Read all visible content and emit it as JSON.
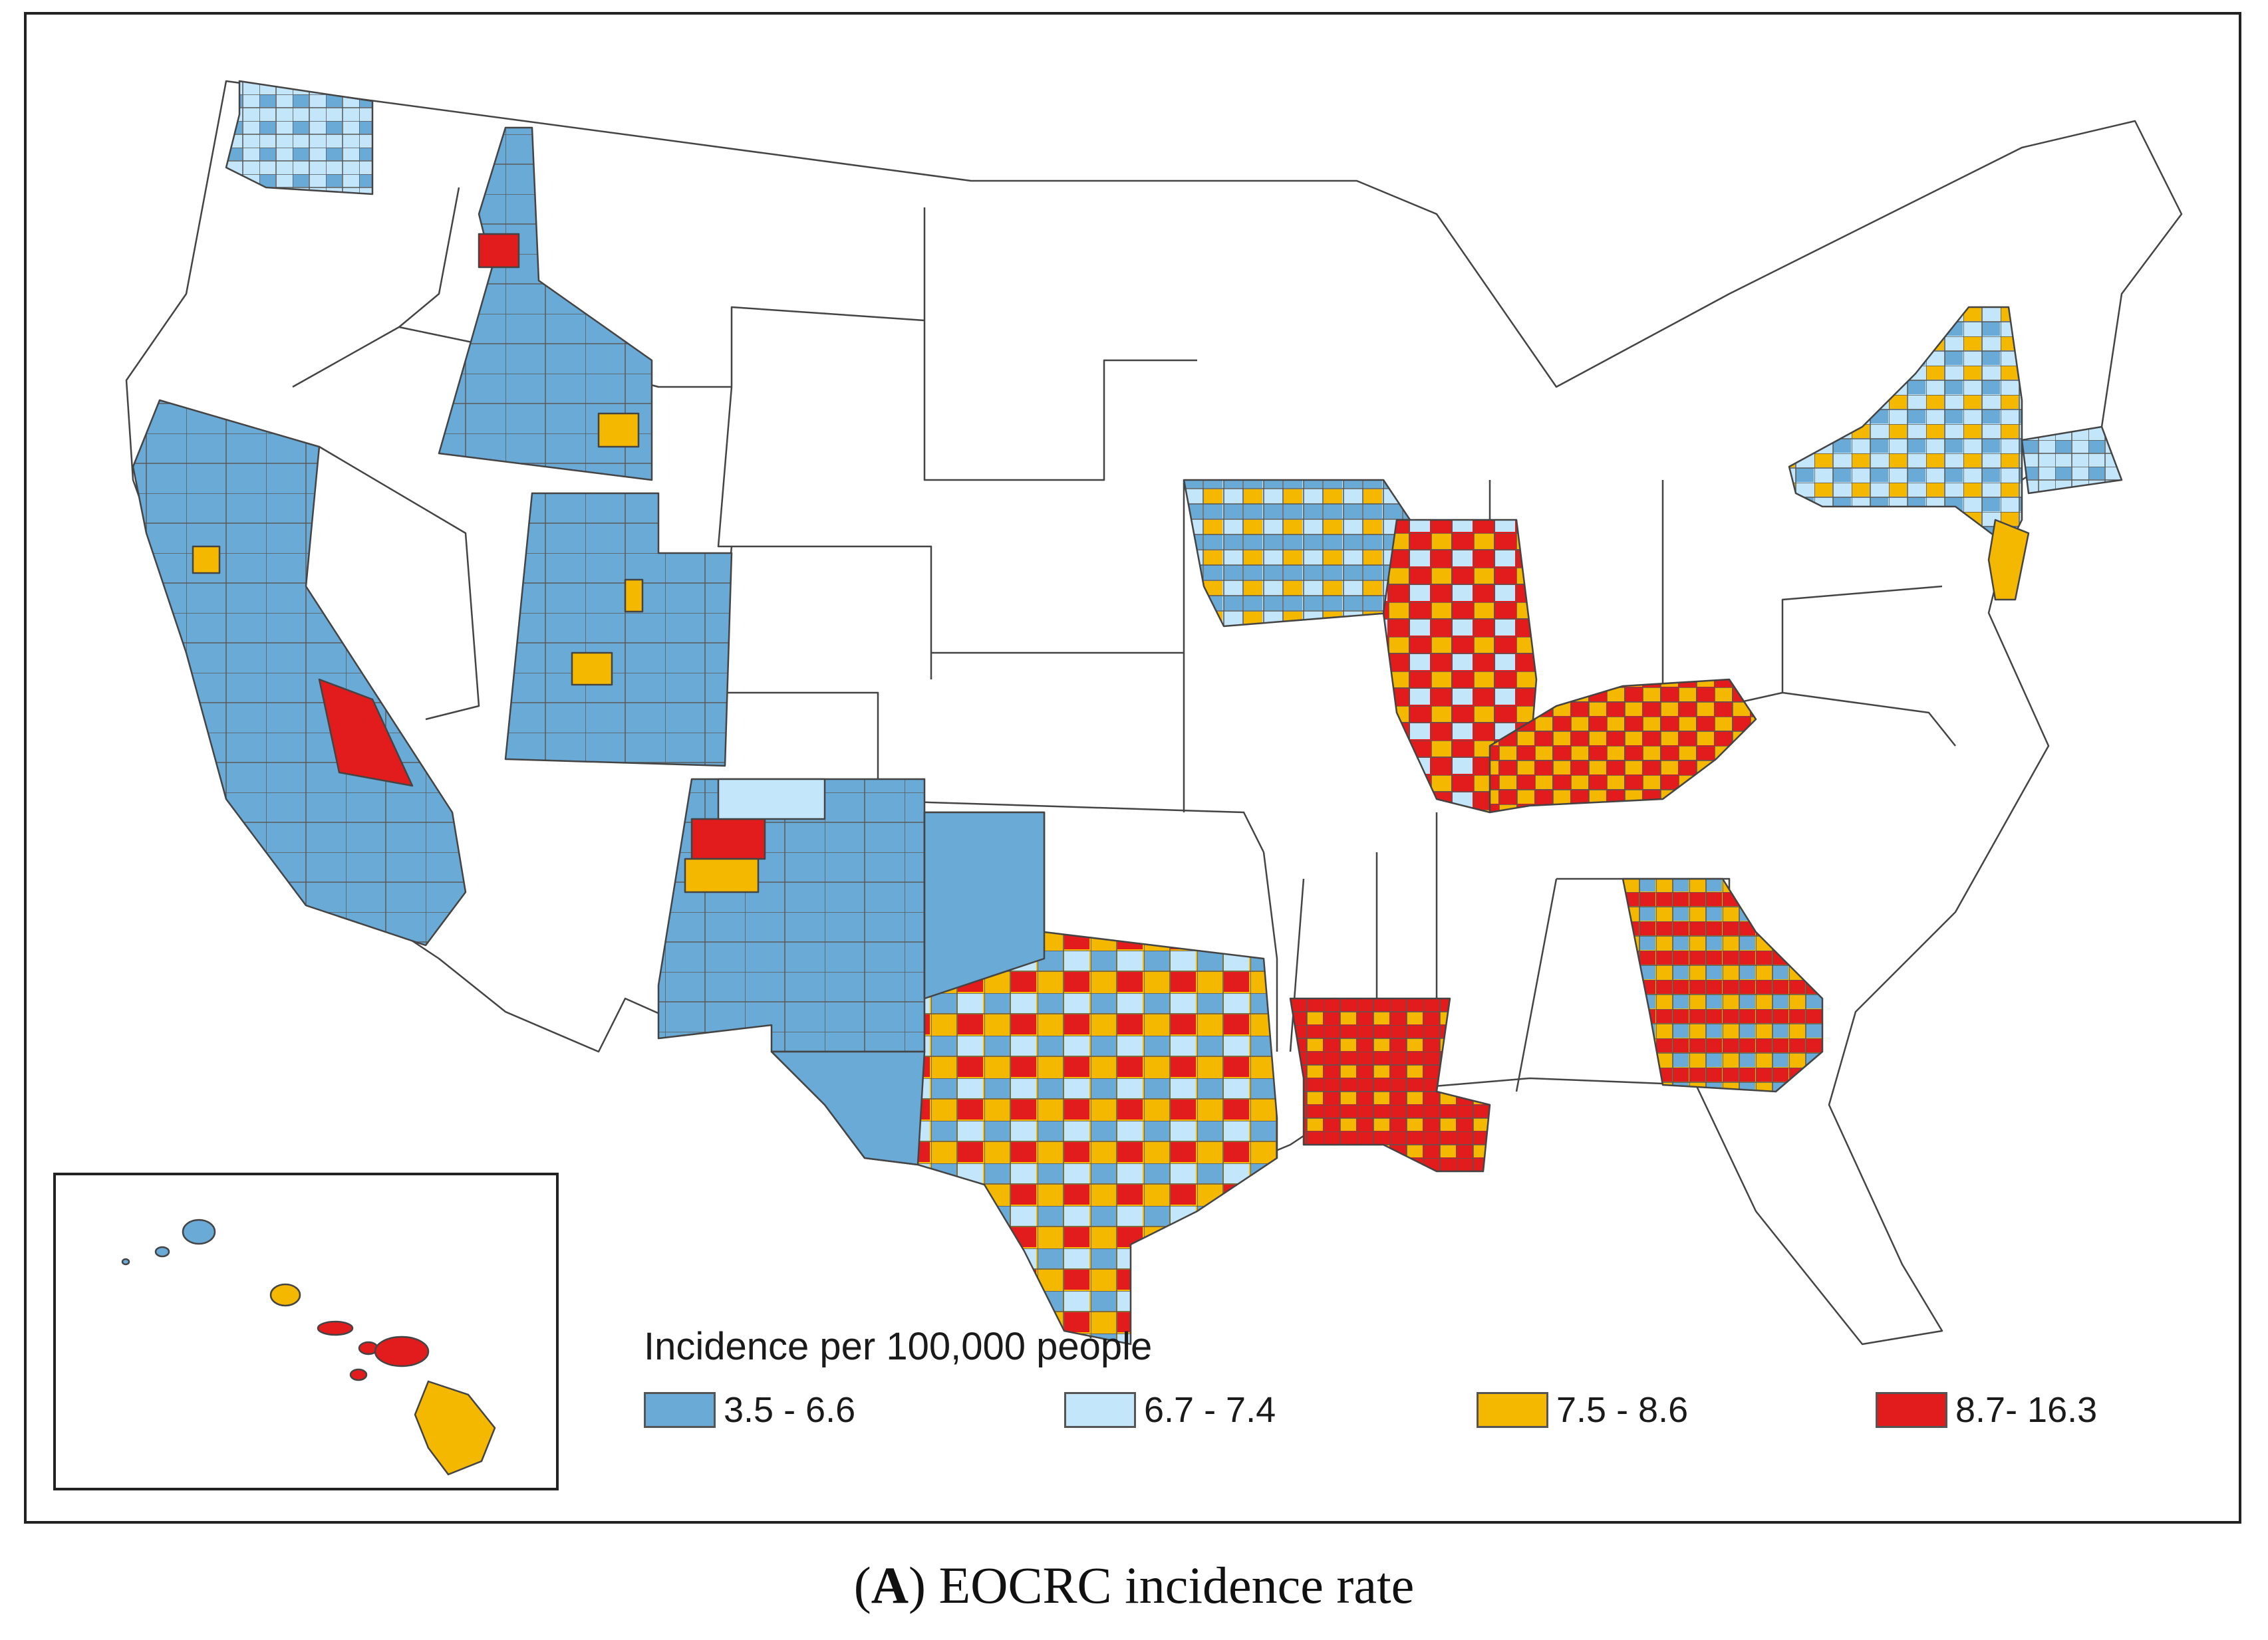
{
  "legend": {
    "title": "Incidence per 100,000 people",
    "items": [
      {
        "label": "3.5 - 6.6",
        "color": "#6aaad6"
      },
      {
        "label": "6.7 - 7.4",
        "color": "#c3e6fb"
      },
      {
        "label": "7.5 - 8.6",
        "color": "#f5b800"
      },
      {
        "label": "8.7- 16.3",
        "color": "#e21c1c"
      }
    ]
  },
  "caption": {
    "letter": "A",
    "text": "EOCRC incidence rate"
  },
  "map": {
    "region": "United States (contiguous) with Hawaii inset",
    "no_data_color": "#ffffff",
    "boundary_color": "#444444",
    "states_with_data": [
      {
        "state": "Washington",
        "dominant": "6.7 - 7.4"
      },
      {
        "state": "Idaho",
        "dominant": "3.5 - 6.6"
      },
      {
        "state": "California",
        "dominant": "3.5 - 6.6"
      },
      {
        "state": "Utah",
        "dominant": "3.5 - 6.6"
      },
      {
        "state": "New Mexico",
        "dominant": "3.5 - 6.6"
      },
      {
        "state": "Texas",
        "dominant": "7.5 - 8.6"
      },
      {
        "state": "Iowa",
        "dominant": "6.7 - 7.4"
      },
      {
        "state": "Illinois",
        "dominant": "8.7- 16.3"
      },
      {
        "state": "Kentucky",
        "dominant": "8.7- 16.3"
      },
      {
        "state": "Louisiana",
        "dominant": "8.7- 16.3"
      },
      {
        "state": "Georgia",
        "dominant": "8.7- 16.3"
      },
      {
        "state": "New York",
        "dominant": "7.5 - 8.6"
      },
      {
        "state": "Connecticut",
        "dominant": "6.7 - 7.4"
      },
      {
        "state": "New Jersey",
        "dominant": "7.5 - 8.6"
      },
      {
        "state": "Hawaii",
        "dominant": "7.5 - 8.6"
      }
    ]
  }
}
